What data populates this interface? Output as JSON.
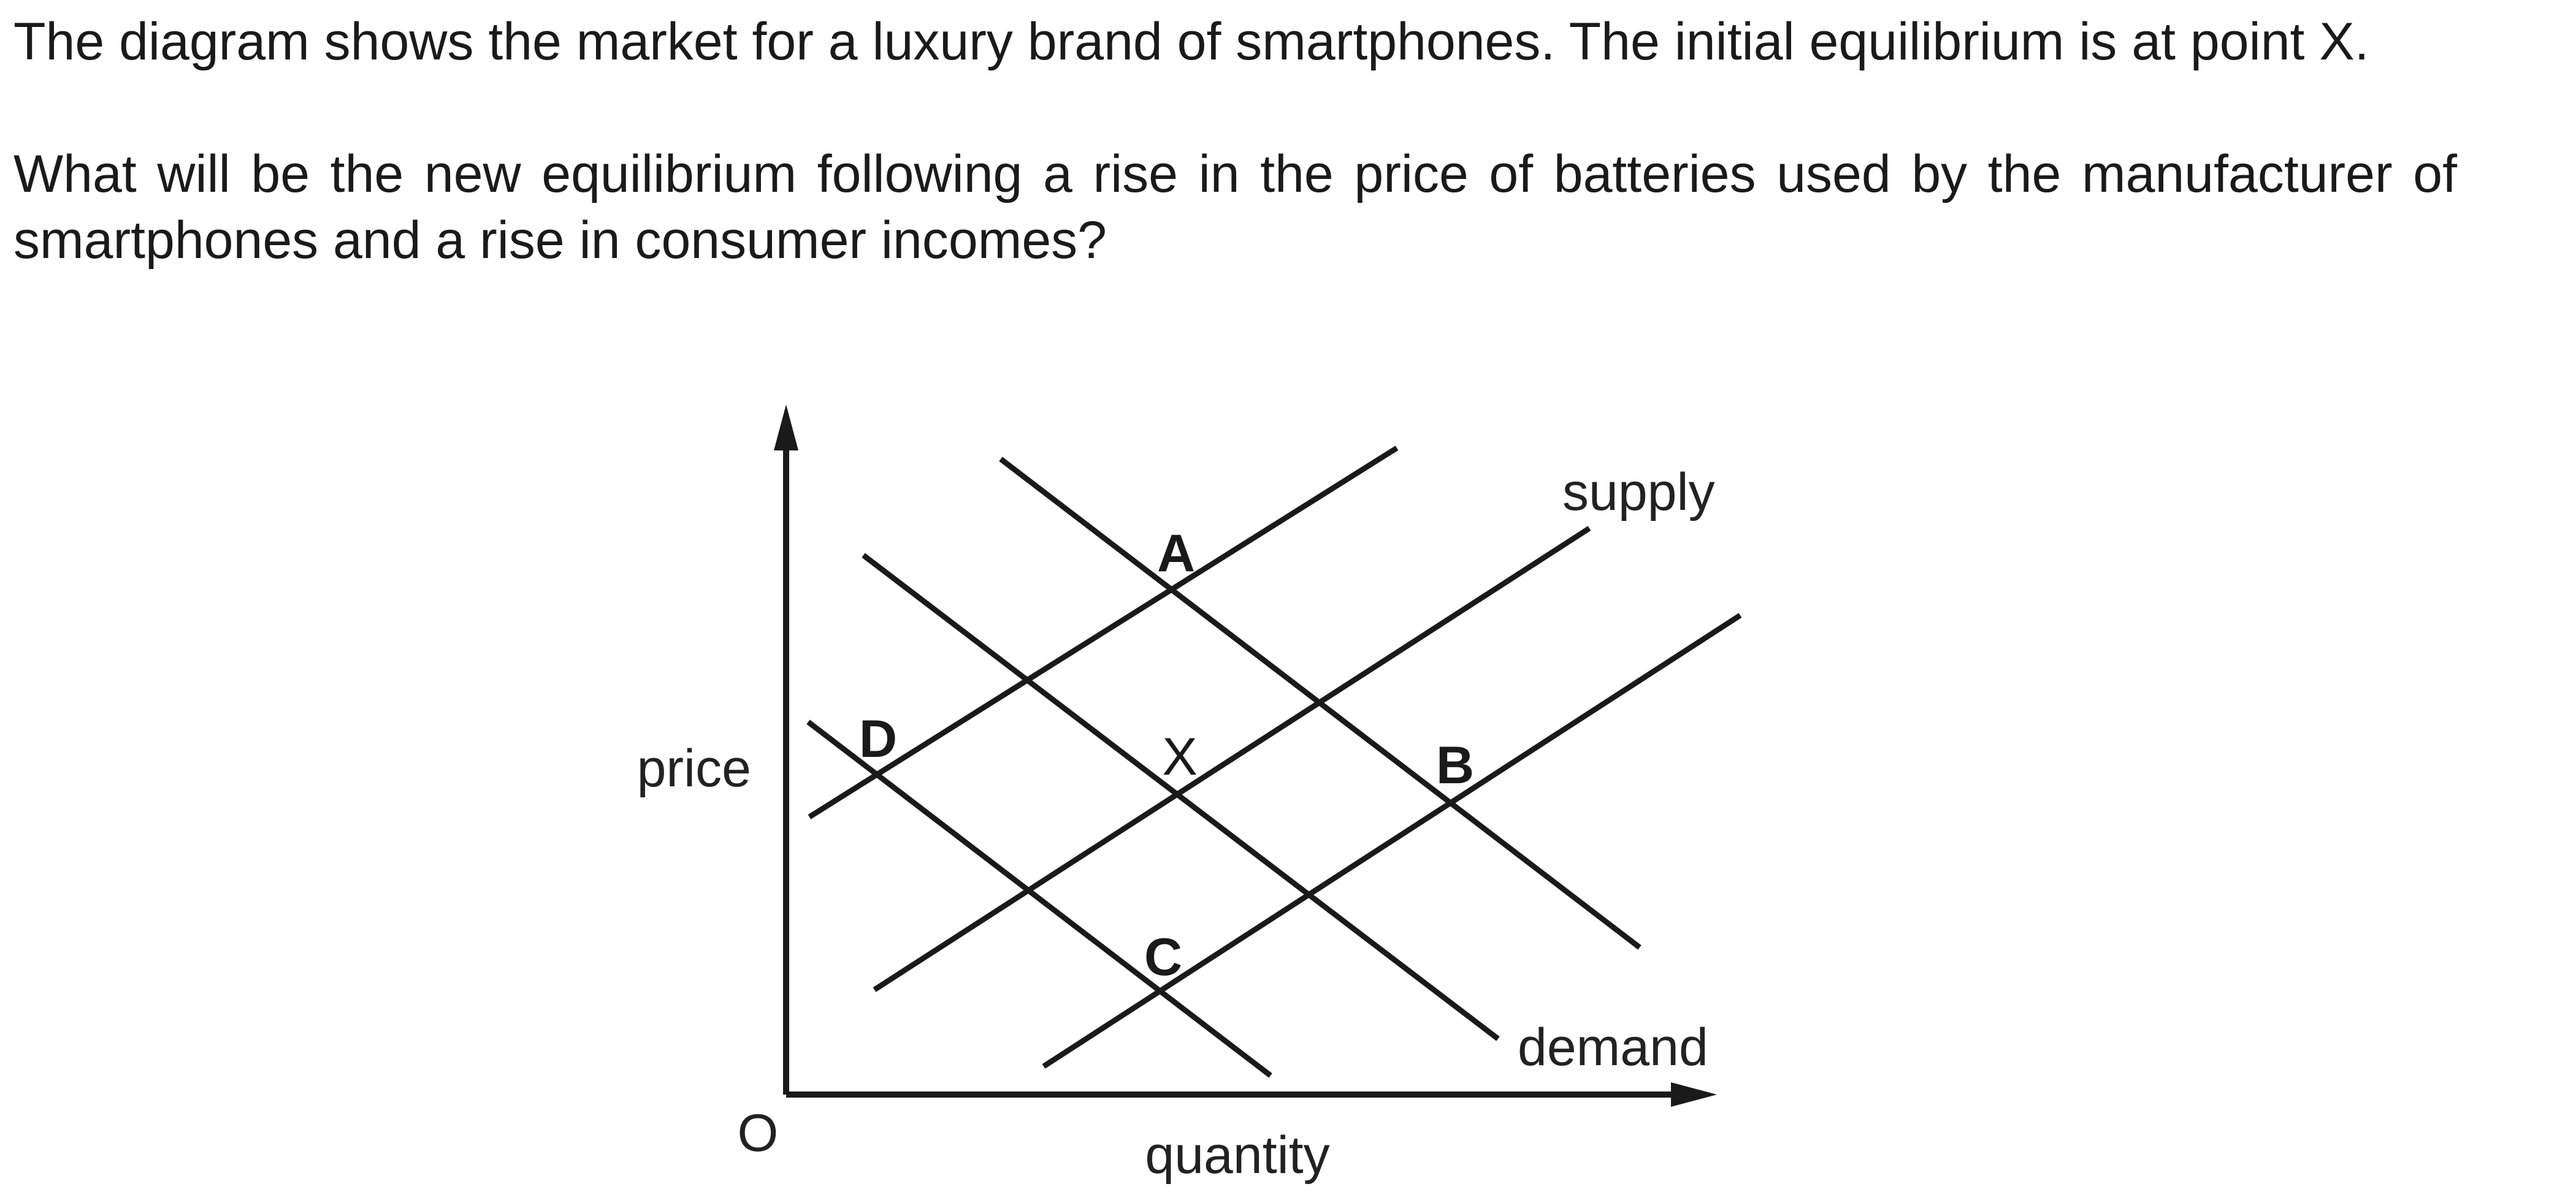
{
  "question": {
    "paragraph_1": "The diagram shows the market for a luxury brand of smartphones. The initial equilibrium is at point X.",
    "paragraph_2": "What will be the new equilibrium following a rise in the price of batteries used by the manufacturer of smartphones and a rise in consumer incomes?"
  },
  "diagram": {
    "y_axis_label": "price",
    "x_axis_label": "quantity",
    "origin_label": "O",
    "supply_label": "supply",
    "demand_label": "demand",
    "points": {
      "A": "A",
      "B": "B",
      "C": "C",
      "D": "D",
      "X": "X"
    },
    "colors": {
      "ink": "#1a1a1a",
      "background": "#ffffff"
    }
  }
}
